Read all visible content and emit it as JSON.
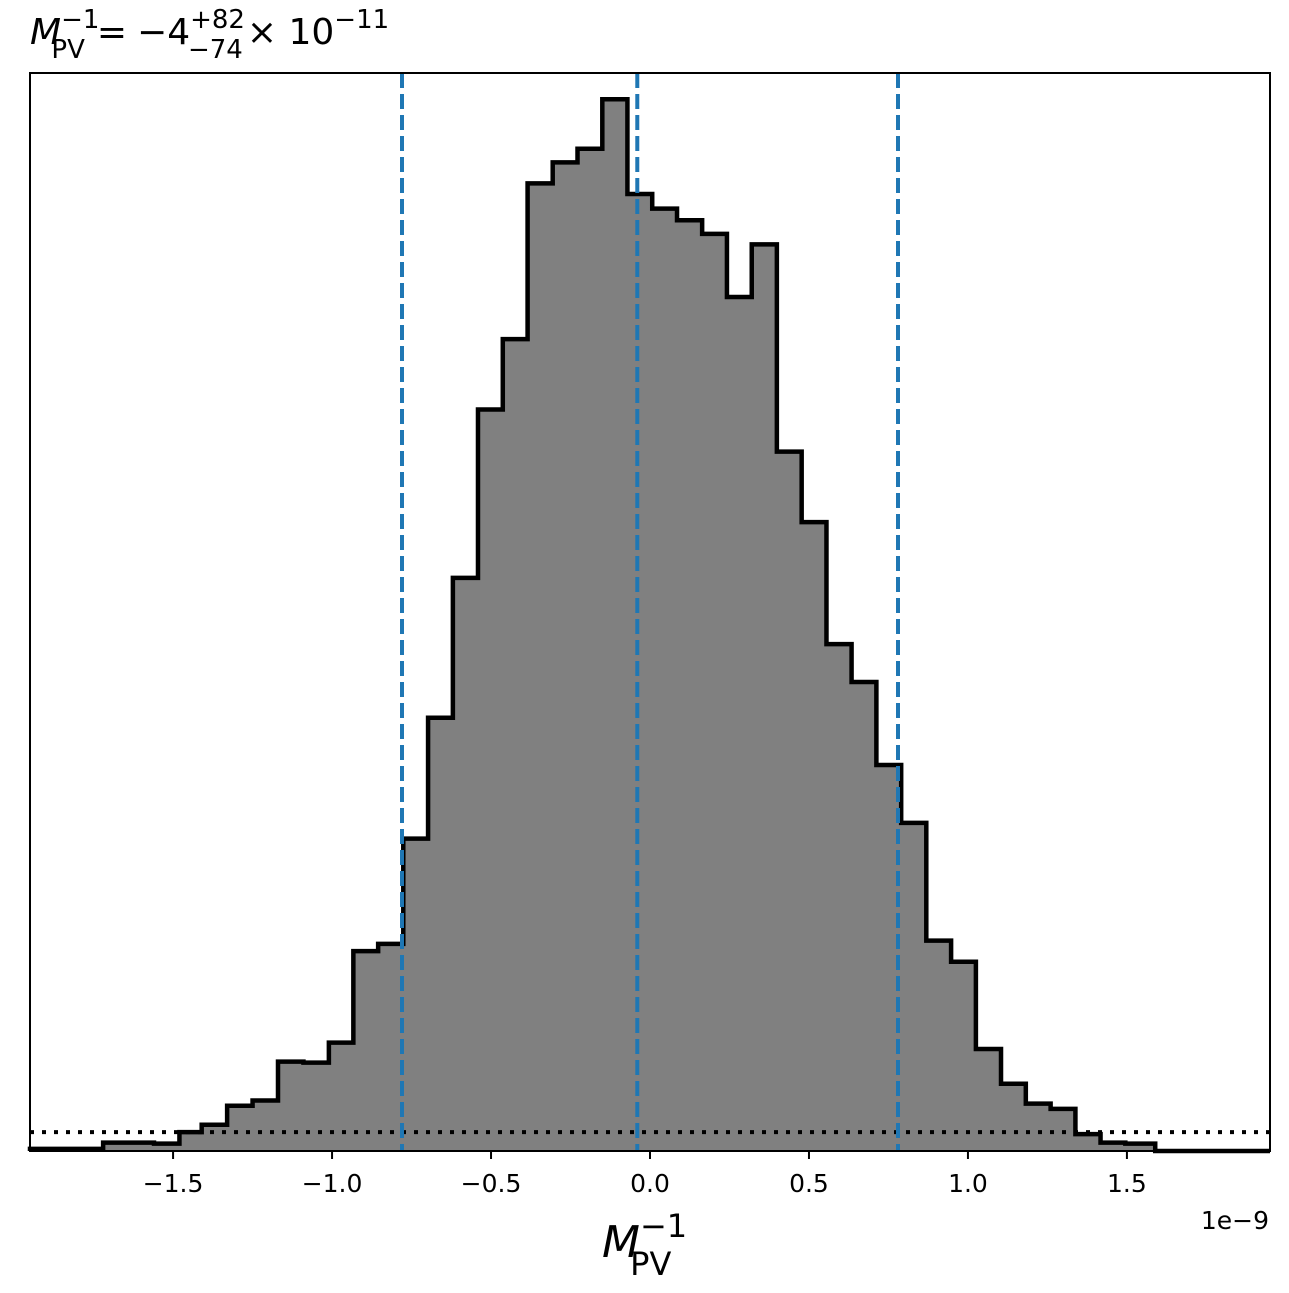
{
  "chart_data": {
    "type": "histogram",
    "title": {
      "var": "M",
      "var_sub": "PV",
      "var_sup": "−1",
      "equals": "=",
      "median": "−4",
      "plus": "+82",
      "minus": "−74",
      "times_ten": "× 10",
      "exponent": "−11"
    },
    "xlabel": {
      "var": "M",
      "var_sub": "PV",
      "var_sup": "−1"
    },
    "x_offset_label": "1e−9",
    "xlim": [
      -1.95e-09,
      1.95e-09
    ],
    "ylim": [
      0,
      1.025
    ],
    "xticks": [
      -1.5e-09,
      -1e-09,
      -5e-10,
      0.0,
      5e-10,
      1e-09,
      1.5e-09
    ],
    "xtick_labels": [
      "−1.5",
      "−1.0",
      "−0.5",
      "0.0",
      "0.5",
      "1.0",
      "1.5"
    ],
    "bin_edges": [
      -1.95e-09,
      -1.72e-09,
      -1.56e-09,
      -1.48e-09,
      -1.41e-09,
      -1.33e-09,
      -1.25e-09,
      -1.17e-09,
      -1.09e-09,
      -1.01e-09,
      -9.33e-10,
      -8.55e-10,
      -7.76e-10,
      -6.98e-10,
      -6.2e-10,
      -5.41e-10,
      -4.63e-10,
      -3.85e-10,
      -3.06e-10,
      -2.28e-10,
      -1.5e-10,
      -7.1e-11,
      7e-12,
      8.5e-11,
      1.64e-10,
      2.42e-10,
      3.2e-10,
      3.99e-10,
      4.77e-10,
      5.55e-10,
      6.34e-10,
      7.12e-10,
      7.9e-10,
      8.69e-10,
      9.47e-10,
      1.025e-09,
      1.104e-09,
      1.182e-09,
      1.26e-09,
      1.338e-09,
      1.417e-09,
      1.495e-09,
      1.589e-09,
      1.95e-09
    ],
    "counts": [
      0.002,
      0.008,
      0.007,
      0.018,
      0.025,
      0.043,
      0.048,
      0.085,
      0.084,
      0.103,
      0.19,
      0.197,
      0.297,
      0.412,
      0.545,
      0.705,
      0.772,
      0.92,
      0.94,
      0.953,
      1.0,
      0.91,
      0.896,
      0.885,
      0.872,
      0.812,
      0.862,
      0.665,
      0.598,
      0.482,
      0.446,
      0.367,
      0.312,
      0.2,
      0.18,
      0.097,
      0.064,
      0.045,
      0.04,
      0.016,
      0.008,
      0.007,
      0.0
    ],
    "quantile_lines": [
      -7.8e-10,
      -4e-11,
      7.8e-10
    ],
    "reference_level": 0.018,
    "colors": {
      "hist_fill": "#808080",
      "hist_edge": "#000000",
      "quantile_line": "#1f77b4",
      "reference_line": "#000000"
    }
  }
}
